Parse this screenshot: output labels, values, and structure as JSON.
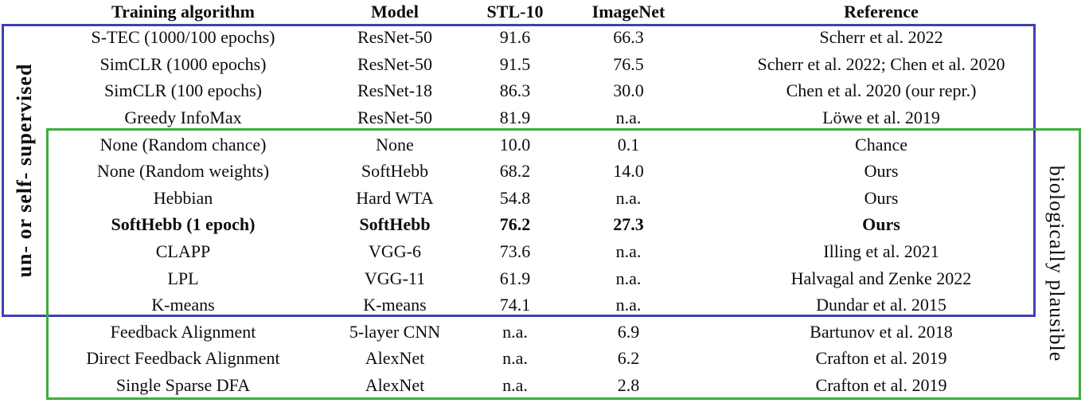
{
  "header": {
    "columns": [
      "Training algorithm",
      "Model",
      "STL-10",
      "ImageNet",
      "Reference"
    ]
  },
  "rows": [
    {
      "algorithm": "S-TEC (1000/100 epochs)",
      "model": "ResNet-50",
      "stl10": "91.6",
      "imagenet": "66.3",
      "reference": "Scherr et al. 2022",
      "bold": false
    },
    {
      "algorithm": "SimCLR (1000 epochs)",
      "model": "ResNet-50",
      "stl10": "91.5",
      "imagenet": "76.5",
      "reference": "Scherr et al. 2022; Chen et al. 2020",
      "bold": false
    },
    {
      "algorithm": "SimCLR (100 epochs)",
      "model": "ResNet-18",
      "stl10": "86.3",
      "imagenet": "30.0",
      "reference": "Chen et al. 2020 (our repr.)",
      "bold": false
    },
    {
      "algorithm": "Greedy InfoMax",
      "model": "ResNet-50",
      "stl10": "81.9",
      "imagenet": "n.a.",
      "reference": "Löwe et al. 2019",
      "bold": false
    },
    {
      "algorithm": "None (Random chance)",
      "model": "None",
      "stl10": "10.0",
      "imagenet": "0.1",
      "reference": "Chance",
      "bold": false
    },
    {
      "algorithm": "None (Random weights)",
      "model": "SoftHebb",
      "stl10": "68.2",
      "imagenet": "14.0",
      "reference": "Ours",
      "bold": false
    },
    {
      "algorithm": "Hebbian",
      "model": "Hard WTA",
      "stl10": "54.8",
      "imagenet": "n.a.",
      "reference": "Ours",
      "bold": false
    },
    {
      "algorithm": "SoftHebb (1 epoch)",
      "model": "SoftHebb",
      "stl10": "76.2",
      "imagenet": "27.3",
      "reference": "Ours",
      "bold": true
    },
    {
      "algorithm": "CLAPP",
      "model": "VGG-6",
      "stl10": "73.6",
      "imagenet": "n.a.",
      "reference": "Illing et al. 2021",
      "bold": false
    },
    {
      "algorithm": "LPL",
      "model": "VGG-11",
      "stl10": "61.9",
      "imagenet": "n.a.",
      "reference": "Halvagal and Zenke 2022",
      "bold": false
    },
    {
      "algorithm": "K-means",
      "model": "K-means",
      "stl10": "74.1",
      "imagenet": "n.a.",
      "reference": "Dundar et al. 2015",
      "bold": false
    },
    {
      "algorithm": "Feedback Alignment",
      "model": "5-layer CNN",
      "stl10": "n.a.",
      "imagenet": "6.9",
      "reference": "Bartunov et al. 2018",
      "bold": false
    },
    {
      "algorithm": "Direct Feedback Alignment",
      "model": "AlexNet",
      "stl10": "n.a.",
      "imagenet": "6.2",
      "reference": "Crafton et al. 2019",
      "bold": false
    },
    {
      "algorithm": "Single Sparse DFA",
      "model": "AlexNet",
      "stl10": "n.a.",
      "imagenet": "2.8",
      "reference": "Crafton et al. 2019",
      "bold": false
    }
  ],
  "side_labels": {
    "left": "un- or self- supervised",
    "right": "biologically plausible"
  },
  "colors": {
    "blue_box": "#4040b2",
    "green_box": "#3cad3c"
  }
}
